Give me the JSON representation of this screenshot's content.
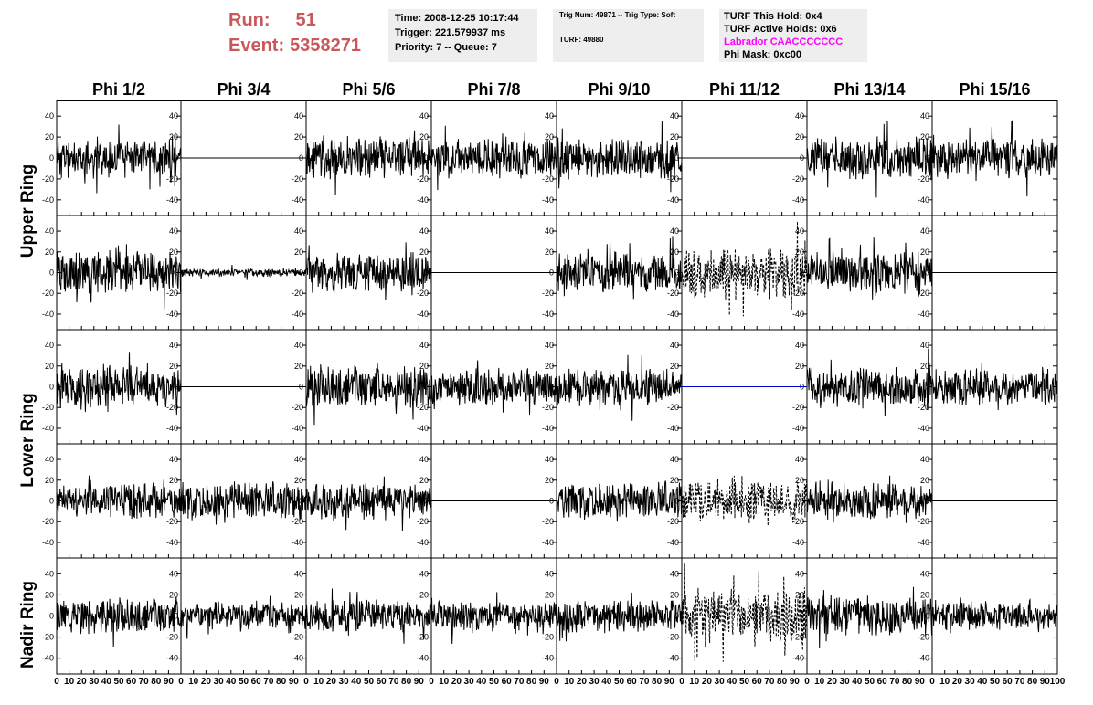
{
  "header": {
    "run_label": "Run:",
    "run_value": "51",
    "event_label": "Event:",
    "event_value": "5358271",
    "time": "Time: 2008-12-25 10:17:44",
    "trigger": "Trigger: 221.579937 ms",
    "priority": "Priority: 7 -- Queue: 7",
    "trig_num": "Trig Num: 49871 -- Trig Type: Soft",
    "turf": "TURF: 49880",
    "turf_this_hold": "TURF This Hold: 0x4",
    "turf_active_holds": "TURF Active Holds: 0x6",
    "labrador": "Labrador CAACCCCCCC",
    "phi_mask": "Phi Mask: 0xc00"
  },
  "colors": {
    "run_text": "#c8585a",
    "labrador_text": "#ff00ff",
    "info_bg": "#eeeeee",
    "blue_trace": "#0000cc"
  },
  "ring_labels": [
    "Upper Ring",
    "Lower Ring",
    "Nadir Ring"
  ],
  "chart_data": {
    "type": "line",
    "title": "",
    "columns": [
      "Phi 1/2",
      "Phi 3/4",
      "Phi 5/6",
      "Phi 7/8",
      "Phi 9/10",
      "Phi 11/12",
      "Phi 13/14",
      "Phi 15/16"
    ],
    "xlim": [
      0,
      100
    ],
    "ylim": [
      -55,
      55
    ],
    "x_ticks": [
      0,
      10,
      20,
      30,
      40,
      50,
      60,
      70,
      80,
      90,
      100
    ],
    "y_ticks": [
      -40,
      -20,
      0,
      20,
      40
    ],
    "grid": false,
    "rows": [
      [
        {
          "kind": "noise",
          "amp": 15,
          "seed": 11
        },
        {
          "kind": "flat"
        },
        {
          "kind": "noise",
          "amp": 16,
          "seed": 13
        },
        {
          "kind": "noise",
          "amp": 14,
          "seed": 14
        },
        {
          "kind": "noise",
          "amp": 16,
          "seed": 15
        },
        {
          "kind": "flat"
        },
        {
          "kind": "noise",
          "amp": 16,
          "seed": 17
        },
        {
          "kind": "noise",
          "amp": 15,
          "seed": 18
        }
      ],
      [
        {
          "kind": "noise",
          "amp": 17,
          "seed": 21
        },
        {
          "kind": "noise",
          "amp": 3,
          "seed": 22
        },
        {
          "kind": "noise",
          "amp": 15,
          "seed": 23
        },
        {
          "kind": "flat"
        },
        {
          "kind": "noise",
          "amp": 15,
          "seed": 25
        },
        {
          "kind": "dashed",
          "amp": 20,
          "seed": 26
        },
        {
          "kind": "noise",
          "amp": 15,
          "seed": 27
        },
        {
          "kind": "flat"
        }
      ],
      [
        {
          "kind": "noise",
          "amp": 15,
          "seed": 31
        },
        {
          "kind": "flat"
        },
        {
          "kind": "noise",
          "amp": 16,
          "seed": 33
        },
        {
          "kind": "noise",
          "amp": 14,
          "seed": 34
        },
        {
          "kind": "noise",
          "amp": 14,
          "seed": 35
        },
        {
          "kind": "flat",
          "color": "blue"
        },
        {
          "kind": "noise",
          "amp": 15,
          "seed": 37
        },
        {
          "kind": "noise",
          "amp": 14,
          "seed": 38
        }
      ],
      [
        {
          "kind": "noise",
          "amp": 13,
          "seed": 41
        },
        {
          "kind": "noise",
          "amp": 14,
          "seed": 42
        },
        {
          "kind": "noise",
          "amp": 13,
          "seed": 43
        },
        {
          "kind": "flat"
        },
        {
          "kind": "noise",
          "amp": 14,
          "seed": 45
        },
        {
          "kind": "dashed",
          "amp": 16,
          "seed": 46
        },
        {
          "kind": "noise",
          "amp": 14,
          "seed": 47
        },
        {
          "kind": "flat"
        }
      ],
      [
        {
          "kind": "noise",
          "amp": 13,
          "seed": 51
        },
        {
          "kind": "noise",
          "amp": 10,
          "seed": 52
        },
        {
          "kind": "noise",
          "amp": 12,
          "seed": 53
        },
        {
          "kind": "noise",
          "amp": 11,
          "seed": 54
        },
        {
          "kind": "noise",
          "amp": 12,
          "seed": 55
        },
        {
          "kind": "dashed",
          "amp": 20,
          "seed": 56
        },
        {
          "kind": "noise",
          "amp": 15,
          "seed": 57
        },
        {
          "kind": "noise",
          "amp": 11,
          "seed": 58
        }
      ]
    ]
  }
}
